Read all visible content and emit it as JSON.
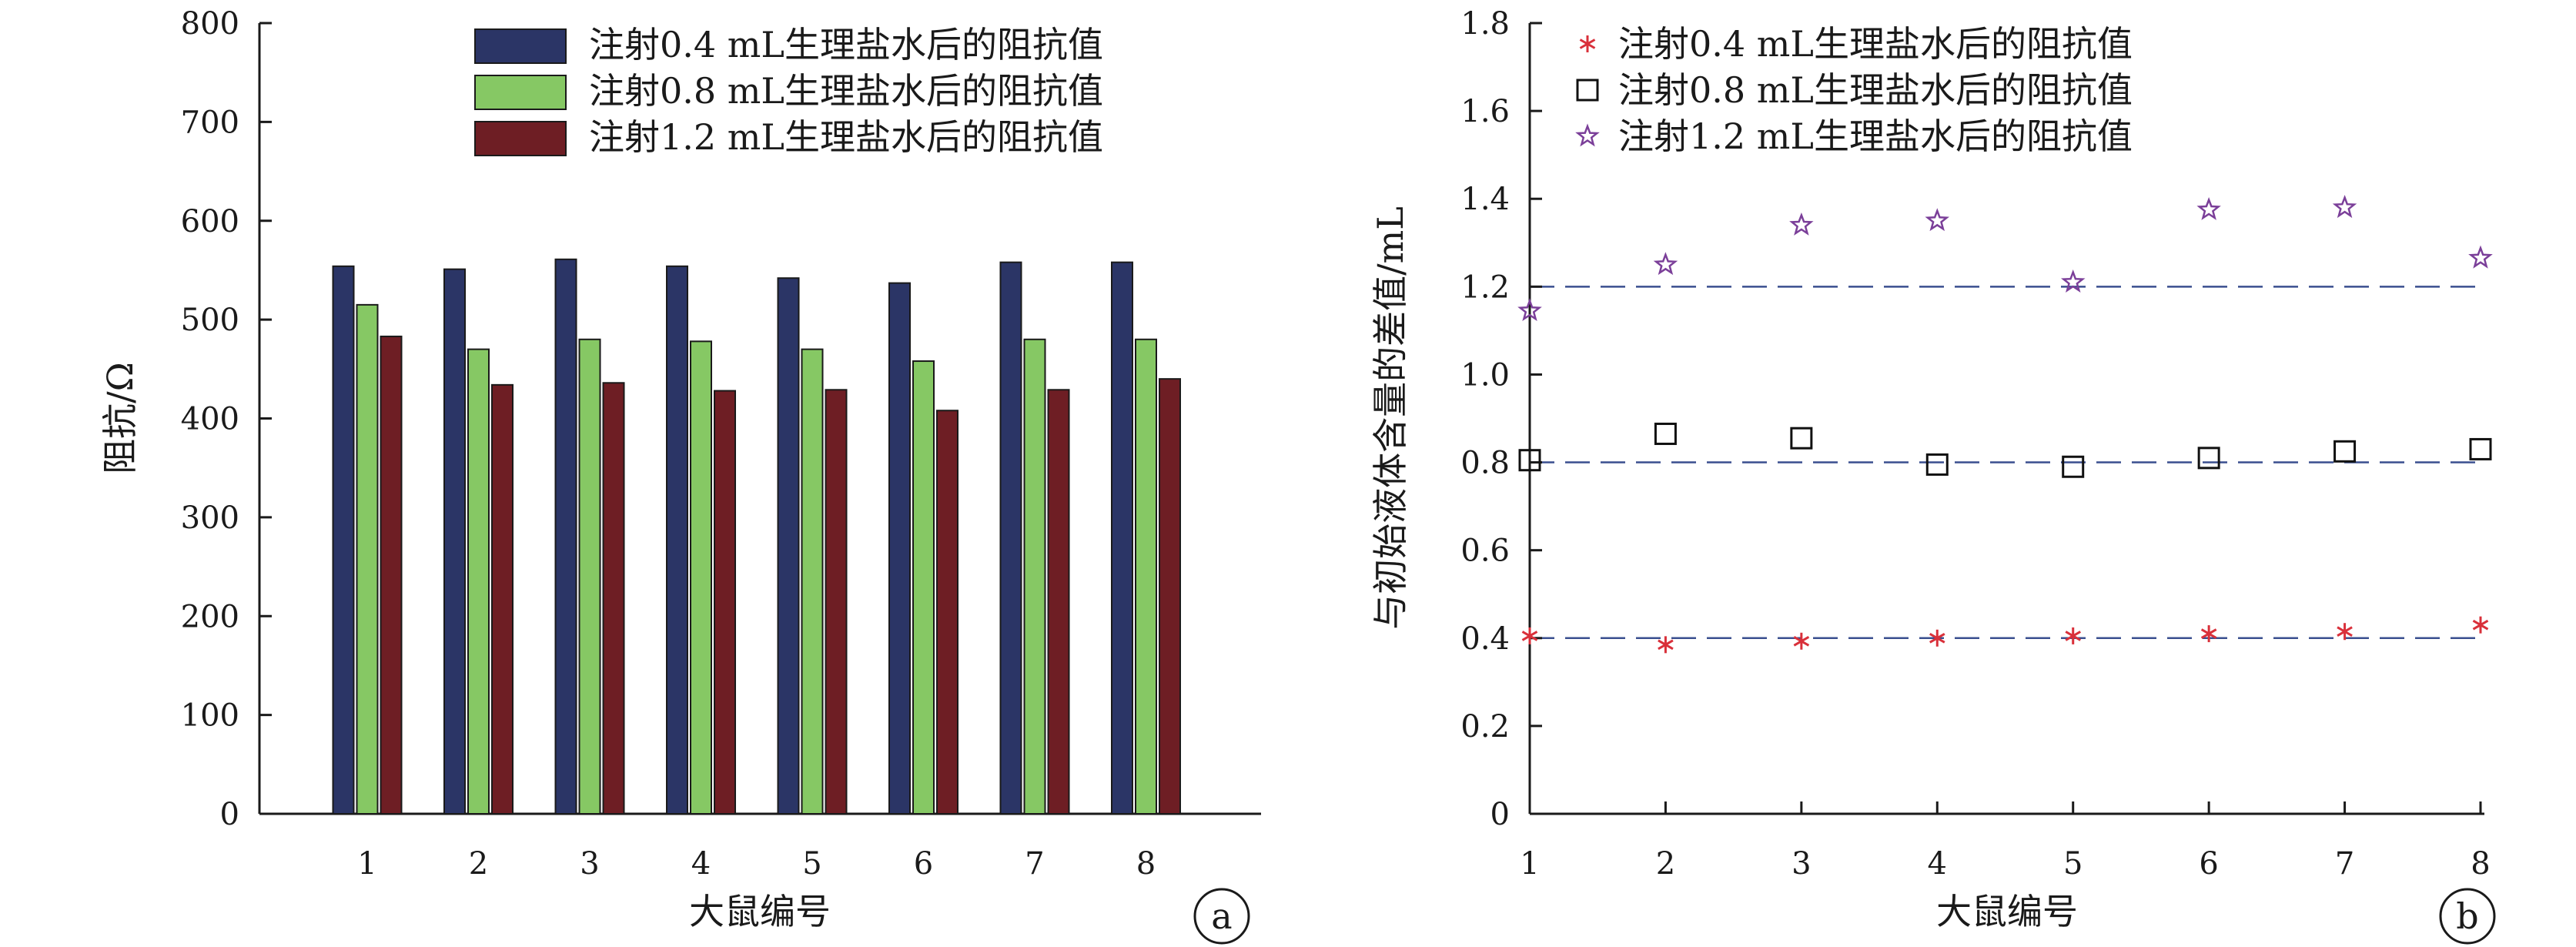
{
  "chart_data": [
    {
      "type": "bar",
      "panel_label": "a",
      "xlabel": "大鼠编号",
      "ylabel": "阻抗/Ω",
      "ylim": [
        0,
        800
      ],
      "yticks": [
        0,
        100,
        200,
        300,
        400,
        500,
        600,
        700,
        800
      ],
      "categories": [
        "1",
        "2",
        "3",
        "4",
        "5",
        "6",
        "7",
        "8"
      ],
      "legend_position": "top-right",
      "series": [
        {
          "name": "注射0.4 mL生理盐水后的阻抗值",
          "color": "#2b3566",
          "values": [
            554,
            551,
            561,
            554,
            542,
            537,
            558,
            558
          ]
        },
        {
          "name": "注射0.8 mL生理盐水后的阻抗值",
          "color": "#86c864",
          "values": [
            515,
            470,
            480,
            478,
            470,
            458,
            480,
            480
          ]
        },
        {
          "name": "注射1.2 mL生理盐水后的阻抗值",
          "color": "#6e1e24",
          "values": [
            483,
            434,
            436,
            428,
            429,
            408,
            429,
            440
          ]
        }
      ]
    },
    {
      "type": "scatter",
      "panel_label": "b",
      "xlabel": "大鼠编号",
      "ylabel": "与初始液体含量的差值/mL",
      "xlim": [
        1,
        8
      ],
      "ylim": [
        0,
        1.8
      ],
      "xticks": [
        1,
        2,
        3,
        4,
        5,
        6,
        7,
        8
      ],
      "yticks": [
        "0",
        "0.2",
        "0.4",
        "0.6",
        "0.8",
        "1.0",
        "1.2",
        "1.4",
        "1.6",
        "1.8"
      ],
      "legend_position": "top-left",
      "reference_lines": [
        0.4,
        0.8,
        1.2
      ],
      "reference_line_color": "#3a4f8f",
      "series": [
        {
          "name": "注射0.4 mL生理盐水后的阻抗值",
          "marker": "asterisk",
          "color": "#d9303a",
          "x": [
            1,
            2,
            3,
            4,
            5,
            6,
            7,
            8
          ],
          "y": [
            0.405,
            0.385,
            0.393,
            0.4,
            0.405,
            0.41,
            0.415,
            0.43
          ]
        },
        {
          "name": "注射0.8 mL生理盐水后的阻抗值",
          "marker": "square",
          "color": "#111111",
          "x": [
            1,
            2,
            3,
            4,
            5,
            6,
            7,
            8
          ],
          "y": [
            0.805,
            0.865,
            0.855,
            0.795,
            0.79,
            0.81,
            0.825,
            0.83
          ]
        },
        {
          "name": "注射1.2 mL生理盐水后的阻抗值",
          "marker": "star",
          "color": "#7b3f99",
          "x": [
            1,
            2,
            3,
            4,
            5,
            6,
            7,
            8
          ],
          "y": [
            1.145,
            1.25,
            1.34,
            1.35,
            1.21,
            1.375,
            1.38,
            1.265
          ]
        }
      ]
    }
  ]
}
